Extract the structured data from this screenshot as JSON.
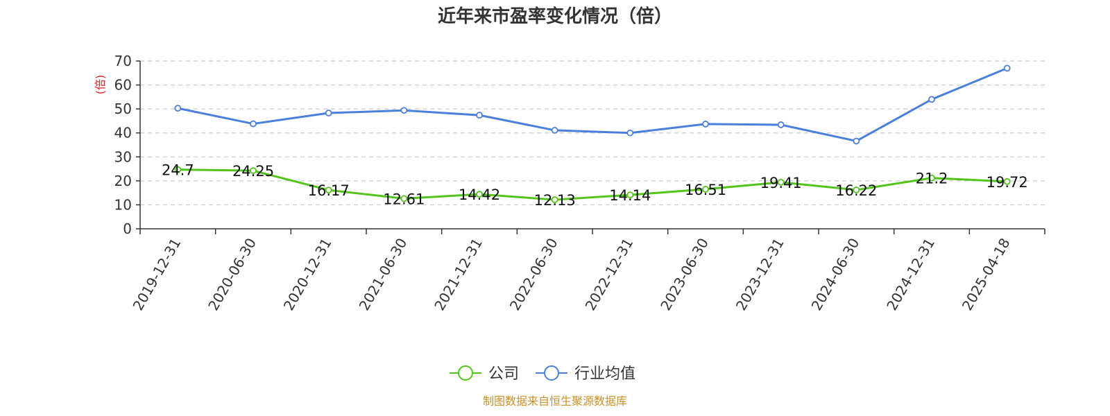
{
  "chart_data": {
    "type": "line",
    "title": "近年来市盈率变化情况（倍）",
    "ylabel": "(倍)",
    "categories": [
      "2019-12-31",
      "2020-06-30",
      "2020-12-31",
      "2021-06-30",
      "2021-12-31",
      "2022-06-30",
      "2022-12-31",
      "2023-06-30",
      "2023-12-31",
      "2024-06-30",
      "2024-12-31",
      "2025-04-18"
    ],
    "series": [
      {
        "name": "公司",
        "color": "#52c41a",
        "values": [
          24.7,
          24.25,
          16.17,
          12.61,
          14.42,
          12.13,
          14.14,
          16.51,
          19.41,
          16.22,
          21.2,
          19.72
        ],
        "labels": [
          "24.7",
          "24.25",
          "16.17",
          "12.61",
          "14.42",
          "12.13",
          "14.14",
          "16.51",
          "19.41",
          "16.22",
          "21.2",
          "19.72"
        ]
      },
      {
        "name": "行业均值",
        "color": "#4a7fdb",
        "values": [
          50.3,
          43.8,
          48.3,
          49.4,
          47.4,
          41.1,
          40.0,
          43.7,
          43.4,
          36.6,
          54.0,
          67.0
        ]
      }
    ],
    "ylim": [
      0,
      70
    ],
    "yticks": [
      "0",
      "10",
      "20",
      "30",
      "40",
      "50",
      "60",
      "70"
    ],
    "grid": true,
    "legend": "bottom-center",
    "source": "制图数据来自恒生聚源数据库",
    "colors": {
      "ylabel": "#e02020",
      "source": "#c8902a",
      "grid": "#cccccc",
      "axis": "#333333"
    }
  }
}
